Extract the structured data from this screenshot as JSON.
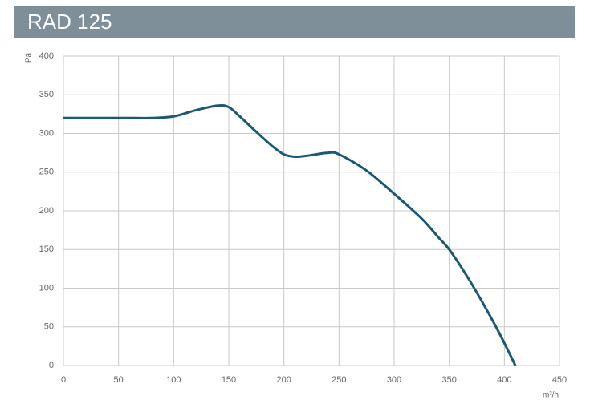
{
  "chart_data": {
    "type": "line",
    "title": "RAD 125",
    "x_label": "m³/h",
    "y_label": "Pa",
    "x": [
      0,
      50,
      80,
      100,
      120,
      140,
      150,
      160,
      175,
      190,
      200,
      210,
      220,
      240,
      250,
      275,
      300,
      325,
      340,
      350,
      365,
      380,
      395,
      410
    ],
    "series": [
      {
        "color": "#1b5873",
        "values": [
          320,
          320,
          320,
          322,
          330,
          336,
          334,
          322,
          302,
          283,
          273,
          270,
          271,
          275,
          273,
          252,
          222,
          190,
          166,
          150,
          118,
          82,
          43,
          0
        ]
      }
    ],
    "xlim": [
      0,
      450
    ],
    "ylim": [
      0,
      400
    ],
    "xticks": [
      0,
      50,
      100,
      150,
      200,
      250,
      300,
      350,
      400,
      450
    ],
    "yticks": [
      0,
      50,
      100,
      150,
      200,
      250,
      300,
      350,
      400
    ],
    "grid": true
  }
}
